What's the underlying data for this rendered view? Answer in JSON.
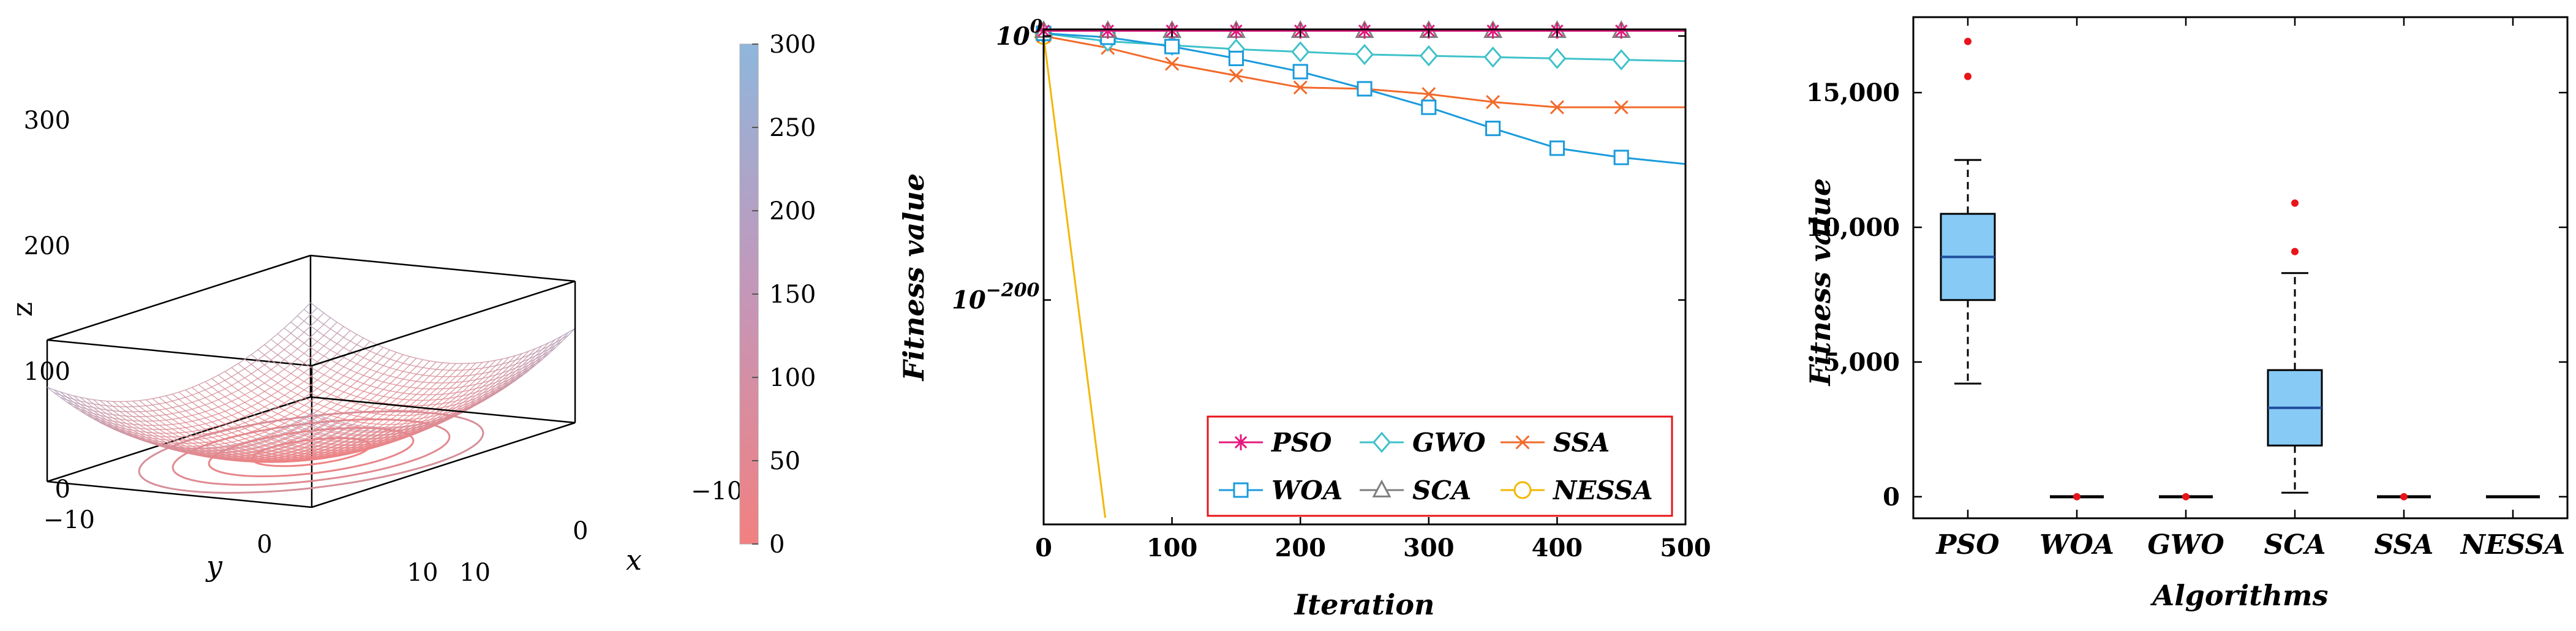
{
  "chart_data": [
    {
      "type": "surface",
      "title": "",
      "function": "z = x^2 + y^2",
      "xlabel": "x",
      "ylabel": "y",
      "zlabel": "z",
      "xlim": [
        -10,
        10
      ],
      "ylim": [
        -10,
        10
      ],
      "zlim": [
        0,
        300
      ],
      "x_ticks": [
        "−10",
        "0",
        "10"
      ],
      "y_ticks": [
        "−10",
        "0",
        "10"
      ],
      "z_ticks": [
        "0",
        "100",
        "200",
        "300"
      ],
      "contour_levels": [
        10,
        30,
        55,
        85
      ],
      "colorbar": {
        "range": [
          0,
          300
        ],
        "ticks": [
          "0",
          "50",
          "100",
          "150",
          "200",
          "250",
          "300"
        ],
        "color_low": "#f28080",
        "color_high": "#8fb6dc"
      }
    },
    {
      "type": "line",
      "yscale": "log",
      "xlabel": "Iteration",
      "ylabel": "Fitness value",
      "xlim": [
        0,
        500
      ],
      "ylim_exp": [
        -370,
        5
      ],
      "x_ticks": [
        "0",
        "100",
        "200",
        "300",
        "400",
        "500"
      ],
      "y_tick_labels": [
        {
          "base": "10",
          "exp": "0",
          "value_exp": 0
        },
        {
          "base": "10",
          "exp": "−200",
          "value_exp": -200
        }
      ],
      "legend": {
        "position": "bottom-right",
        "columns": 3
      },
      "series": [
        {
          "name": "PSO",
          "color": "#e6197e",
          "marker": "star",
          "x": [
            0,
            50,
            100,
            150,
            200,
            250,
            300,
            350,
            400,
            450,
            500
          ],
          "y_exp": [
            4,
            4,
            4,
            4,
            4,
            4,
            4,
            4,
            4,
            4,
            4
          ]
        },
        {
          "name": "GWO",
          "color": "#3fc1c9",
          "marker": "diamond",
          "x": [
            0,
            50,
            100,
            150,
            200,
            250,
            300,
            350,
            400,
            450,
            500
          ],
          "y_exp": [
            2,
            -4,
            -7,
            -10,
            -12,
            -14,
            -15,
            -16,
            -17,
            -18,
            -19
          ]
        },
        {
          "name": "SSA",
          "color": "#f26a2a",
          "marker": "x",
          "x": [
            0,
            50,
            100,
            150,
            200,
            250,
            300,
            350,
            400,
            450,
            500
          ],
          "y_exp": [
            0,
            -9,
            -21,
            -30,
            -39,
            -40,
            -44,
            -50,
            -54,
            -54,
            -54
          ]
        },
        {
          "name": "WOA",
          "color": "#1a9bdc",
          "marker": "square",
          "x": [
            0,
            50,
            100,
            150,
            200,
            250,
            300,
            350,
            400,
            450,
            500
          ],
          "y_exp": [
            2,
            -1,
            -8,
            -17,
            -27,
            -40,
            -54,
            -70,
            -85,
            -92,
            -97
          ]
        },
        {
          "name": "SCA",
          "color": "#7f7f7f",
          "marker": "triangle",
          "x": [
            0,
            50,
            100,
            150,
            200,
            250,
            300,
            350,
            400,
            450,
            500
          ],
          "y_exp": [
            4,
            4,
            4,
            4,
            4,
            4,
            4,
            4,
            4,
            4,
            4
          ]
        },
        {
          "name": "NESSA",
          "color": "#f2b705",
          "marker": "circle",
          "x": [
            0,
            48
          ],
          "y_exp": [
            0,
            -365
          ]
        }
      ]
    },
    {
      "type": "box",
      "xlabel": "Algorithms",
      "ylabel": "Fitness value",
      "ylim": [
        -800,
        17800
      ],
      "y_ticks": [
        "0",
        "5,000",
        "10,000",
        "15,000"
      ],
      "y_tick_values": [
        0,
        5000,
        10000,
        15000
      ],
      "box_color": "#86caf5",
      "median_color": "#1f4e9c",
      "outlier_color": "#e8141a",
      "categories": [
        "PSO",
        "WOA",
        "GWO",
        "SCA",
        "SSA",
        "NESSA"
      ],
      "boxes": [
        {
          "name": "PSO",
          "min": 4200,
          "q1": 7300,
          "median": 8900,
          "q3": 10500,
          "max": 12500,
          "outliers": [
            15600,
            16900
          ]
        },
        {
          "name": "WOA",
          "min": 0,
          "q1": 0,
          "median": 0,
          "q3": 0,
          "max": 0,
          "outliers": [
            0
          ]
        },
        {
          "name": "GWO",
          "min": 0,
          "q1": 0,
          "median": 0,
          "q3": 0,
          "max": 0,
          "outliers": [
            0
          ]
        },
        {
          "name": "SCA",
          "min": 150,
          "q1": 1900,
          "median": 3300,
          "q3": 4700,
          "max": 8300,
          "outliers": [
            9100,
            10900
          ]
        },
        {
          "name": "SSA",
          "min": 0,
          "q1": 0,
          "median": 0,
          "q3": 0,
          "max": 0,
          "outliers": [
            0
          ]
        },
        {
          "name": "NESSA",
          "min": 0,
          "q1": 0,
          "median": 0,
          "q3": 0,
          "max": 0,
          "outliers": []
        }
      ]
    }
  ]
}
